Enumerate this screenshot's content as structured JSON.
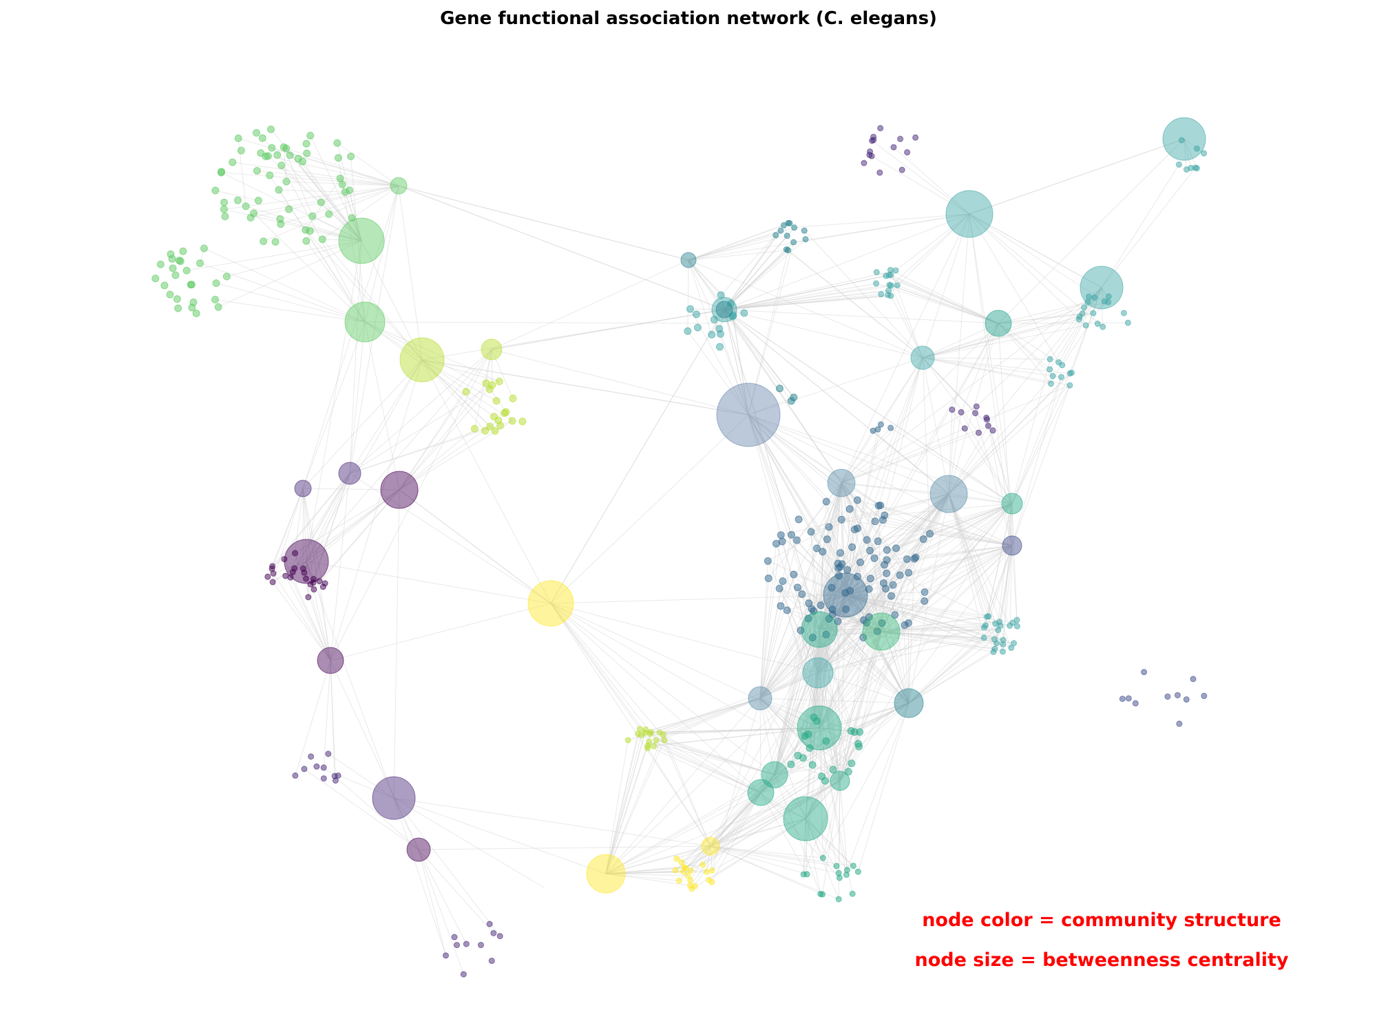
{
  "figure": {
    "title": "Gene functional association network (C. elegans)",
    "annotations": [
      {
        "text": "node color = community structure"
      },
      {
        "text": "node size = betweenness centrality"
      }
    ],
    "annotation_color": "#ff0000",
    "edge_color": "#cfcfcf",
    "palette": "viridis"
  }
}
